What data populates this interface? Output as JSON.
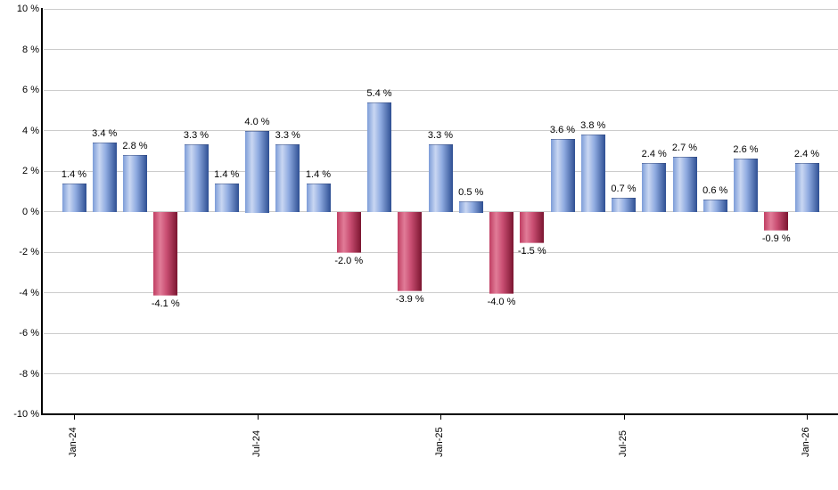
{
  "chart": {
    "background_color": "#ffffff",
    "grid_color": "#cccccc",
    "axis_color": "#000000",
    "label_color": "#000000",
    "positive_bar_gradient": [
      "#7d9cd8",
      "#c9d7f2",
      "#8fabe0",
      "#2e4f93"
    ],
    "negative_bar_gradient": [
      "#c03e62",
      "#e17c98",
      "#c94e72",
      "#7b1530"
    ],
    "gradient_positions_pct": [
      0,
      28,
      55,
      100
    ]
  },
  "chart_data": {
    "type": "bar",
    "title": "",
    "xlabel": "",
    "ylabel": "",
    "ylim": [
      -10,
      10
    ],
    "y_tick_step": 2,
    "grid": true,
    "legend": false,
    "y_tick_labels": [
      "10 %",
      "8 %",
      "6 %",
      "4 %",
      "2 %",
      "0 %",
      "-2 %",
      "-4 %",
      "-6 %",
      "-8 %",
      "-10 %"
    ],
    "x_tick_labels": [
      {
        "index": 0,
        "label": "Jan-24"
      },
      {
        "index": 6,
        "label": "Jul-24"
      },
      {
        "index": 12,
        "label": "Jan-25"
      },
      {
        "index": 18,
        "label": "Jul-25"
      },
      {
        "index": 24,
        "label": "Jan-26"
      }
    ],
    "values": [
      1.4,
      3.4,
      2.8,
      -4.1,
      3.3,
      1.4,
      4.0,
      3.3,
      1.4,
      -2.0,
      5.4,
      -3.9,
      3.3,
      0.5,
      -4.0,
      -1.5,
      3.6,
      3.8,
      0.7,
      2.4,
      2.7,
      0.6,
      2.6,
      -0.9,
      2.4
    ],
    "bar_labels": [
      "1.4 %",
      "3.4 %",
      "2.8 %",
      "-4.1 %",
      "3.3 %",
      "1.4 %",
      "4.0 %",
      "3.3 %",
      "1.4 %",
      "-2.0 %",
      "5.4 %",
      "-3.9 %",
      "3.3 %",
      "0.5 %",
      "-4.0 %",
      "-1.5 %",
      "3.6 %",
      "3.8 %",
      "0.7 %",
      "2.4 %",
      "2.7 %",
      "0.6 %",
      "2.6 %",
      "-0.9 %",
      "2.4 %"
    ]
  }
}
